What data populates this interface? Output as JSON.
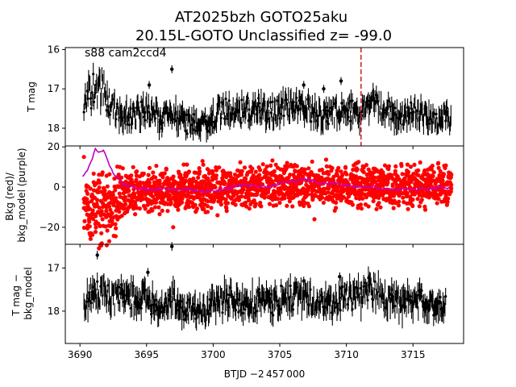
{
  "title": {
    "line1": "AT2025bzh  GOTO25aku",
    "line2": "20.15L-GOTO Unclassified z= -99.0"
  },
  "xlabel": "BTJD −2 457 000",
  "x_ticks": [
    "3690",
    "3695",
    "3700",
    "3705",
    "3710",
    "3715"
  ],
  "colors": {
    "lightcurve": "#000000",
    "background": "#ff0000",
    "background_model": "#bf00bf",
    "marker_line": "#d62728"
  },
  "chart_data": [
    {
      "type": "scatter",
      "panel": "top",
      "annotation": "s88 cam2ccd4",
      "ylabel": "T mag",
      "y_ticks": [
        "16",
        "17",
        "18"
      ],
      "y_inverted": true,
      "xlim": [
        3688.9,
        3718.8
      ],
      "ylim": [
        18.45,
        15.95
      ],
      "grid": false,
      "vertical_line_x": 3711.1,
      "series": [
        {
          "x": [
            3690.3,
            3690.6,
            3691.0,
            3691.4,
            3691.8,
            3692.2,
            3692.6,
            3693.0,
            3693.5,
            3694.0,
            3694.5,
            3695.0,
            3695.5,
            3696.0,
            3696.5,
            3697.0,
            3697.5,
            3698.0,
            3698.5,
            3699.0,
            3699.5,
            3700.0,
            3700.5,
            3701.0,
            3701.5,
            3702.0,
            3702.5,
            3703.0,
            3703.5,
            3704.0,
            3704.5,
            3705.0,
            3705.5,
            3706.0,
            3706.5,
            3707.0,
            3707.5,
            3708.0,
            3708.5,
            3709.0,
            3709.5,
            3710.0,
            3710.5,
            3711.0,
            3711.5,
            3712.0,
            3712.5,
            3713.0,
            3713.5,
            3714.0,
            3714.5,
            3715.0,
            3715.5,
            3716.0,
            3716.5,
            3717.0,
            3717.5,
            3717.9
          ],
          "y": [
            17.6,
            17.2,
            17.0,
            16.9,
            17.1,
            17.4,
            17.6,
            17.7,
            17.6,
            17.7,
            17.6,
            17.5,
            17.6,
            17.8,
            17.7,
            17.6,
            17.8,
            17.9,
            17.8,
            17.9,
            17.9,
            17.7,
            17.6,
            17.5,
            17.6,
            17.6,
            17.5,
            17.6,
            17.5,
            17.6,
            17.6,
            17.5,
            17.4,
            17.4,
            17.5,
            17.5,
            17.6,
            17.7,
            17.7,
            17.6,
            17.5,
            17.6,
            17.6,
            17.7,
            17.4,
            17.3,
            17.5,
            17.6,
            17.6,
            17.8,
            17.7,
            17.6,
            17.6,
            17.7,
            17.8,
            17.8,
            17.7,
            17.8
          ],
          "spread": [
            0.8,
            0.8,
            0.9,
            0.9,
            0.8,
            0.7,
            0.7,
            0.6,
            0.6,
            0.6,
            0.6,
            0.6,
            0.6,
            0.5,
            0.6,
            0.6,
            0.5,
            0.5,
            0.5,
            0.5,
            0.5,
            0.6,
            0.6,
            0.6,
            0.6,
            0.6,
            0.6,
            0.6,
            0.6,
            0.6,
            0.6,
            0.6,
            0.6,
            0.6,
            0.6,
            0.6,
            0.6,
            0.5,
            0.5,
            0.6,
            0.6,
            0.6,
            0.6,
            0.6,
            0.6,
            0.6,
            0.6,
            0.6,
            0.6,
            0.5,
            0.6,
            0.6,
            0.6,
            0.5,
            0.5,
            0.5,
            0.5,
            0.5
          ]
        }
      ],
      "outliers": [
        [
          3696.9,
          16.5
        ],
        [
          3695.2,
          16.9
        ],
        [
          3706.8,
          16.9
        ],
        [
          3708.3,
          17.0
        ],
        [
          3709.6,
          16.8
        ]
      ]
    },
    {
      "type": "scatter",
      "panel": "middle",
      "ylabel": "Bkg (red)/\nbkg_model (purple)",
      "y_ticks": [
        "20",
        "0",
        "−20"
      ],
      "xlim": [
        3688.9,
        3718.8
      ],
      "ylim": [
        -28.5,
        20.5
      ],
      "grid": false,
      "series": [
        {
          "name": "Bkg",
          "x": [
            3690.3,
            3690.6,
            3691.0,
            3691.4,
            3691.8,
            3692.2,
            3692.6,
            3693.0,
            3693.5,
            3694.0,
            3694.5,
            3695.0,
            3695.5,
            3696.0,
            3696.5,
            3697.0,
            3697.5,
            3698.0,
            3698.5,
            3699.0,
            3699.5,
            3700.0,
            3700.5,
            3701.0,
            3701.5,
            3702.0,
            3702.5,
            3703.0,
            3703.5,
            3704.0,
            3704.5,
            3705.0,
            3705.5,
            3706.0,
            3706.5,
            3707.0,
            3707.5,
            3708.0,
            3708.5,
            3709.0,
            3709.5,
            3710.0,
            3710.5,
            3711.0,
            3711.5,
            3712.0,
            3712.5,
            3713.0,
            3713.5,
            3714.0,
            3714.5,
            3715.0,
            3715.5,
            3716.0,
            3716.5,
            3717.0,
            3717.5,
            3717.9
          ],
          "low": [
            -20,
            -24,
            -26,
            -27,
            -27,
            -26,
            -22,
            -18,
            -14,
            -12,
            -12,
            -12,
            -13,
            -12,
            -12,
            -11,
            -12,
            -12,
            -12,
            -11,
            -12,
            -12,
            -11,
            -11,
            -10,
            -10,
            -10,
            -10,
            -9,
            -9,
            -10,
            -9,
            -8,
            -8,
            -9,
            -9,
            -9,
            -10,
            -10,
            -11,
            -10,
            -10,
            -10,
            -10,
            -9,
            -9,
            -10,
            -10,
            -11,
            -10,
            -10,
            -10,
            -10,
            -10,
            -10,
            -10,
            -10,
            -9
          ],
          "high": [
            6,
            6,
            7,
            6,
            6,
            6,
            7,
            8,
            9,
            9,
            9,
            9,
            8,
            9,
            9,
            9,
            9,
            9,
            9,
            9,
            9,
            10,
            11,
            11,
            10,
            11,
            11,
            11,
            11,
            11,
            12,
            12,
            12,
            12,
            11,
            11,
            11,
            11,
            11,
            11,
            11,
            10,
            11,
            11,
            11,
            11,
            11,
            10,
            10,
            10,
            10,
            11,
            11,
            11,
            11,
            10,
            10,
            9
          ]
        },
        {
          "name": "bkg_model",
          "x": [
            3690.2,
            3690.5,
            3690.8,
            3691.0,
            3691.2,
            3691.5,
            3691.8,
            3692.0,
            3692.3,
            3692.6,
            3693.0,
            3693.5,
            3694.0,
            3695.0,
            3696.0,
            3697.0,
            3698.0,
            3699.0,
            3700.0,
            3701.0,
            3702.0,
            3703.0,
            3704.0,
            3705.0,
            3706.0,
            3707.0,
            3708.0,
            3709.0,
            3710.0,
            3711.0,
            3712.0,
            3713.0,
            3714.0,
            3715.0,
            3716.0,
            3717.0,
            3717.9
          ],
          "y": [
            5,
            8,
            12,
            16,
            19,
            17,
            18,
            14,
            10,
            6,
            3,
            1,
            0,
            -1,
            -1,
            -1,
            -1,
            -2,
            -2,
            -1,
            1,
            1,
            0,
            2,
            3,
            4,
            2,
            2,
            1,
            0,
            0,
            -1,
            -1,
            -1,
            -1,
            0,
            -1
          ]
        }
      ],
      "outliers": [
        [
          3690.3,
          15
        ],
        [
          3693.0,
          10
        ],
        [
          3697.0,
          -20
        ],
        [
          3699.2,
          13
        ],
        [
          3707.6,
          -16
        ],
        [
          3710.8,
          12
        ],
        [
          3716.9,
          12
        ]
      ]
    },
    {
      "type": "scatter",
      "panel": "bottom",
      "ylabel": "T mag −\nbkg_model",
      "y_ticks": [
        "17",
        "18"
      ],
      "y_inverted": true,
      "xlim": [
        3688.9,
        3718.8
      ],
      "ylim": [
        18.75,
        16.45
      ],
      "grid": false,
      "series": [
        {
          "x": [
            3690.3,
            3690.6,
            3691.0,
            3691.4,
            3691.8,
            3692.2,
            3692.6,
            3693.0,
            3693.5,
            3694.0,
            3694.5,
            3695.0,
            3695.5,
            3696.0,
            3696.5,
            3697.0,
            3697.5,
            3698.0,
            3698.5,
            3699.0,
            3699.5,
            3700.0,
            3700.5,
            3701.0,
            3701.5,
            3702.0,
            3702.5,
            3703.0,
            3703.5,
            3704.0,
            3704.5,
            3705.0,
            3705.5,
            3706.0,
            3706.5,
            3707.0,
            3707.5,
            3708.0,
            3708.5,
            3709.0,
            3709.5,
            3710.0,
            3710.5,
            3711.0,
            3711.5,
            3712.0,
            3712.5,
            3713.0,
            3713.5,
            3714.0,
            3714.5,
            3715.0,
            3715.5,
            3716.0,
            3716.5,
            3717.0,
            3717.5
          ],
          "y": [
            17.8,
            17.7,
            17.6,
            17.6,
            17.5,
            17.6,
            17.7,
            17.6,
            17.7,
            17.7,
            17.7,
            17.7,
            17.8,
            17.9,
            17.8,
            17.7,
            17.9,
            18.0,
            17.9,
            18.0,
            18.0,
            17.8,
            17.8,
            17.7,
            17.7,
            17.8,
            17.8,
            17.8,
            17.7,
            17.8,
            17.8,
            17.7,
            17.7,
            17.7,
            17.7,
            17.7,
            17.7,
            17.8,
            17.8,
            17.8,
            17.7,
            17.7,
            17.7,
            17.7,
            17.5,
            17.5,
            17.6,
            17.7,
            17.7,
            17.9,
            17.8,
            17.8,
            17.8,
            17.8,
            17.9,
            17.9,
            17.9
          ],
          "spread": [
            0.6,
            0.6,
            0.6,
            0.6,
            0.6,
            0.6,
            0.6,
            0.6,
            0.6,
            0.6,
            0.6,
            0.6,
            0.6,
            0.5,
            0.6,
            0.6,
            0.5,
            0.5,
            0.5,
            0.5,
            0.5,
            0.6,
            0.6,
            0.6,
            0.6,
            0.6,
            0.6,
            0.6,
            0.6,
            0.6,
            0.6,
            0.6,
            0.6,
            0.6,
            0.6,
            0.6,
            0.6,
            0.5,
            0.5,
            0.6,
            0.6,
            0.6,
            0.6,
            0.6,
            0.6,
            0.6,
            0.6,
            0.6,
            0.6,
            0.5,
            0.6,
            0.6,
            0.6,
            0.5,
            0.5,
            0.5,
            0.5
          ]
        }
      ],
      "outliers": [
        [
          3696.9,
          16.5
        ],
        [
          3691.3,
          16.7
        ],
        [
          3695.1,
          17.1
        ],
        [
          3706.8,
          17.3
        ],
        [
          3709.5,
          17.2
        ]
      ]
    }
  ]
}
